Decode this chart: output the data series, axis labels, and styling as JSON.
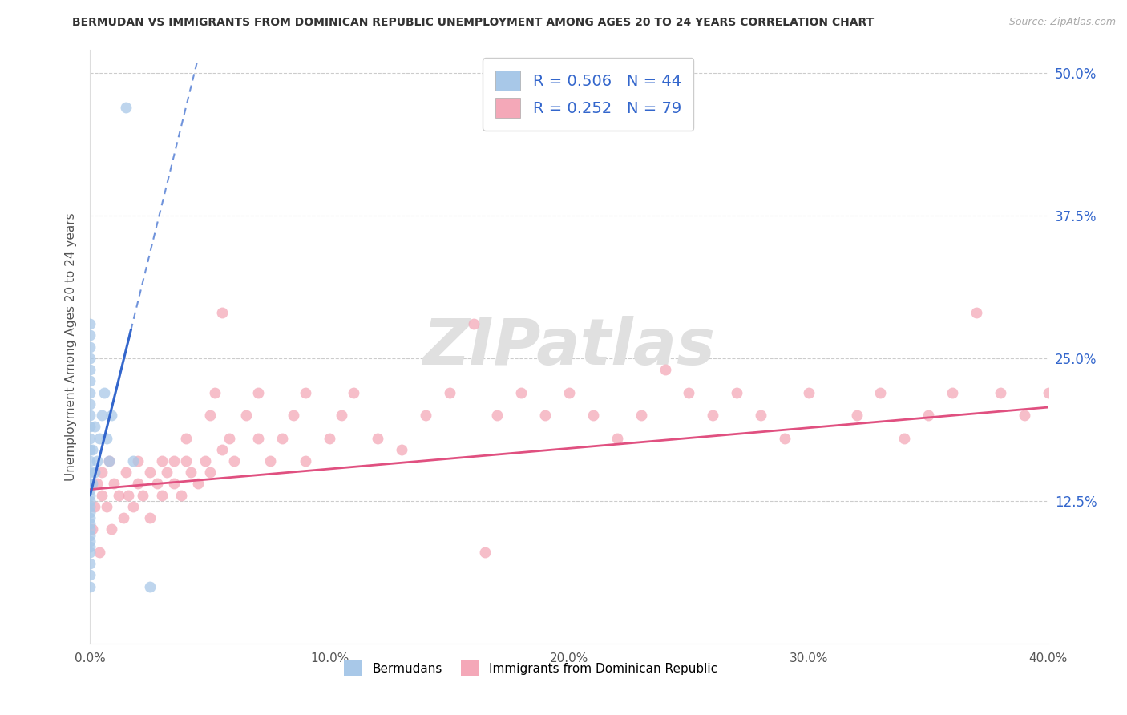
{
  "title": "BERMUDAN VS IMMIGRANTS FROM DOMINICAN REPUBLIC UNEMPLOYMENT AMONG AGES 20 TO 24 YEARS CORRELATION CHART",
  "source": "Source: ZipAtlas.com",
  "ylabel": "Unemployment Among Ages 20 to 24 years",
  "x_tick_vals": [
    0.0,
    10.0,
    20.0,
    30.0,
    40.0
  ],
  "y_tick_labels_right": [
    "12.5%",
    "25.0%",
    "37.5%",
    "50.0%"
  ],
  "y_tick_vals": [
    12.5,
    25.0,
    37.5,
    50.0
  ],
  "xlim": [
    0.0,
    40.0
  ],
  "ylim": [
    0.0,
    52.0
  ],
  "legend_r1": "R = 0.506",
  "legend_n1": "N = 44",
  "legend_r2": "R = 0.252",
  "legend_n2": "N = 79",
  "legend_label1": "Bermudans",
  "legend_label2": "Immigrants from Dominican Republic",
  "color_blue": "#a8c8e8",
  "color_pink": "#f4a8b8",
  "color_blue_line": "#3366cc",
  "color_pink_line": "#e05080",
  "watermark": "ZIPatlas",
  "berm_intercept": 13.0,
  "berm_slope": 8.5,
  "dom_intercept": 13.5,
  "dom_slope": 0.18,
  "berm_x": [
    0.0,
    0.0,
    0.0,
    0.0,
    0.0,
    0.0,
    0.0,
    0.0,
    0.0,
    0.0,
    0.0,
    0.0,
    0.0,
    0.0,
    0.0,
    0.0,
    0.0,
    0.0,
    0.0,
    0.0,
    0.0,
    0.0,
    0.0,
    0.0,
    0.0,
    0.0,
    0.0,
    0.0,
    0.0,
    0.0,
    0.1,
    0.1,
    0.2,
    0.2,
    0.3,
    0.4,
    0.5,
    0.6,
    0.7,
    0.8,
    0.9,
    1.5,
    1.8,
    2.5
  ],
  "berm_y": [
    5.0,
    6.0,
    7.0,
    8.0,
    8.5,
    9.0,
    9.5,
    10.0,
    10.5,
    11.0,
    11.5,
    12.0,
    12.5,
    13.0,
    13.5,
    14.0,
    15.0,
    16.0,
    17.0,
    18.0,
    19.0,
    20.0,
    21.0,
    22.0,
    23.0,
    24.0,
    25.0,
    26.0,
    27.0,
    28.0,
    14.0,
    17.0,
    15.0,
    19.0,
    16.0,
    18.0,
    20.0,
    22.0,
    18.0,
    16.0,
    20.0,
    47.0,
    16.0,
    5.0
  ],
  "dom_x": [
    0.1,
    0.2,
    0.3,
    0.4,
    0.5,
    0.5,
    0.7,
    0.8,
    0.9,
    1.0,
    1.2,
    1.4,
    1.5,
    1.6,
    1.8,
    2.0,
    2.0,
    2.2,
    2.5,
    2.5,
    2.8,
    3.0,
    3.0,
    3.2,
    3.5,
    3.5,
    3.8,
    4.0,
    4.0,
    4.2,
    4.5,
    4.8,
    5.0,
    5.0,
    5.2,
    5.5,
    5.5,
    5.8,
    6.0,
    6.5,
    7.0,
    7.0,
    7.5,
    8.0,
    8.5,
    9.0,
    9.0,
    10.0,
    10.5,
    11.0,
    12.0,
    13.0,
    14.0,
    15.0,
    16.0,
    17.0,
    18.0,
    19.0,
    20.0,
    21.0,
    22.0,
    23.0,
    24.0,
    25.0,
    26.0,
    27.0,
    28.0,
    29.0,
    30.0,
    32.0,
    33.0,
    34.0,
    35.0,
    36.0,
    37.0,
    38.0,
    39.0,
    40.0,
    16.5
  ],
  "dom_y": [
    10.0,
    12.0,
    14.0,
    8.0,
    13.0,
    15.0,
    12.0,
    16.0,
    10.0,
    14.0,
    13.0,
    11.0,
    15.0,
    13.0,
    12.0,
    14.0,
    16.0,
    13.0,
    15.0,
    11.0,
    14.0,
    16.0,
    13.0,
    15.0,
    14.0,
    16.0,
    13.0,
    16.0,
    18.0,
    15.0,
    14.0,
    16.0,
    15.0,
    20.0,
    22.0,
    17.0,
    29.0,
    18.0,
    16.0,
    20.0,
    18.0,
    22.0,
    16.0,
    18.0,
    20.0,
    16.0,
    22.0,
    18.0,
    20.0,
    22.0,
    18.0,
    17.0,
    20.0,
    22.0,
    28.0,
    20.0,
    22.0,
    20.0,
    22.0,
    20.0,
    18.0,
    20.0,
    24.0,
    22.0,
    20.0,
    22.0,
    20.0,
    18.0,
    22.0,
    20.0,
    22.0,
    18.0,
    20.0,
    22.0,
    29.0,
    22.0,
    20.0,
    22.0,
    8.0
  ]
}
